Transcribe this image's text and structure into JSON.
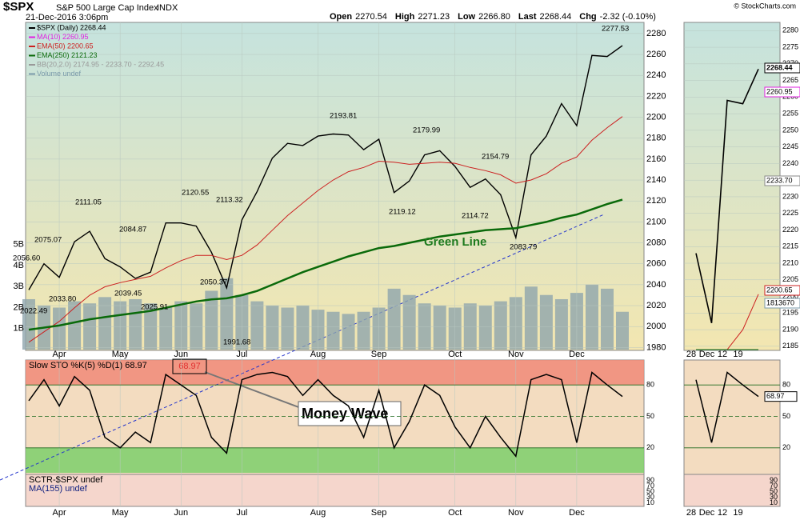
{
  "chart_data": {
    "type": "line",
    "title": "$SPX",
    "subtitle": "S&P 500 Large Cap Index",
    "exchange": "INDX",
    "date": "21-Dec-2016 3:06pm",
    "source": "© StockCharts.com",
    "quote": [
      {
        "label": "Open",
        "value": "2270.54"
      },
      {
        "label": "High",
        "value": "2271.23"
      },
      {
        "label": "Low",
        "value": "2266.80"
      },
      {
        "label": "Last",
        "value": "2268.44"
      },
      {
        "label": "Chg",
        "value": "-2.32 (-0.10%)"
      }
    ],
    "categories": [
      null,
      null,
      "Apr",
      null,
      null,
      null,
      "May",
      null,
      null,
      null,
      "Jun",
      null,
      null,
      null,
      "Jul",
      null,
      null,
      null,
      null,
      "Aug",
      null,
      null,
      null,
      "Sep",
      null,
      null,
      null,
      null,
      "Oct",
      null,
      null,
      null,
      "Nov",
      null,
      null,
      null,
      "Dec",
      null,
      null,
      null
    ],
    "series": [
      {
        "name": "$SPX (Daily) 2268.44",
        "color": "#000000",
        "values": [
          2035,
          2060,
          2047,
          2081,
          2091,
          2065,
          2057,
          2046,
          2052,
          2099,
          2099,
          2096,
          2071,
          2037,
          2102,
          2129,
          2161,
          2175,
          2173,
          2182,
          2184,
          2183,
          2169,
          2179,
          2128,
          2139,
          2164,
          2168,
          2153,
          2133,
          2141,
          2126,
          2085,
          2164,
          2182,
          2213,
          2192,
          2259,
          2258,
          2268.44
        ]
      },
      {
        "name": "EMA(50) 2200.65",
        "color": "#cc2020",
        "values": [
          1985,
          1995,
          2005,
          2018,
          2030,
          2038,
          2042,
          2045,
          2048,
          2056,
          2063,
          2068,
          2068,
          2064,
          2068,
          2078,
          2092,
          2106,
          2118,
          2130,
          2140,
          2148,
          2152,
          2158,
          2157,
          2155,
          2156,
          2157,
          2156,
          2152,
          2149,
          2145,
          2137,
          2140,
          2146,
          2156,
          2162,
          2178,
          2190,
          2200.65
        ]
      },
      {
        "name": "EMA(250) 2121.23",
        "color": "#0a6a0a",
        "values": [
          1997,
          1999,
          2001,
          2004,
          2007,
          2009,
          2011,
          2013,
          2015,
          2018,
          2021,
          2024,
          2026,
          2027,
          2030,
          2034,
          2040,
          2046,
          2052,
          2057,
          2062,
          2067,
          2071,
          2075,
          2077,
          2080,
          2083,
          2086,
          2088,
          2090,
          2092,
          2093,
          2094,
          2097,
          2100,
          2104,
          2107,
          2112,
          2117,
          2121.23
        ]
      }
    ],
    "legend_extra": [
      {
        "name": "MA(10) 2260.95",
        "color": "#e020e0"
      },
      {
        "name": "BB(20,2.0) 2174.95 - 2233.70 - 2292.45",
        "color": "#999999"
      },
      {
        "name": "Volume undef",
        "color": "#7a9aaa"
      }
    ],
    "volume": {
      "color": "#8fa5ad",
      "values": [
        2400000000,
        2100000000,
        2000000000,
        2300000000,
        2200000000,
        2500000000,
        2300000000,
        2400000000,
        2200000000,
        2000000000,
        2300000000,
        2200000000,
        2800000000,
        3400000000,
        2600000000,
        2300000000,
        2100000000,
        2000000000,
        2100000000,
        1900000000,
        1800000000,
        1700000000,
        1800000000,
        2000000000,
        2900000000,
        2600000000,
        2200000000,
        2100000000,
        2000000000,
        2200000000,
        2100000000,
        2300000000,
        2500000000,
        3000000000,
        2600000000,
        2400000000,
        2700000000,
        3100000000,
        2900000000,
        1800000000
      ],
      "ylim": [
        0,
        15500000000
      ],
      "yticks": [
        {
          "value": 1000000000,
          "label": "1B"
        },
        {
          "value": 2000000000,
          "label": "2B"
        },
        {
          "value": 3000000000,
          "label": "3B"
        },
        {
          "value": 4000000000,
          "label": "4B"
        },
        {
          "value": 5000000000,
          "label": "5B"
        }
      ]
    },
    "ylim": [
      1978,
      2286
    ],
    "yticks": [
      1980,
      2000,
      2020,
      2040,
      2060,
      2080,
      2100,
      2120,
      2140,
      2160,
      2180,
      2200,
      2220,
      2240,
      2260,
      2280
    ],
    "annotations": [
      "2277.53",
      "2193.81",
      "2179.99",
      "2154.79",
      "2111.05",
      "2120.55",
      "2113.32",
      "2075.07",
      "2084.87",
      "2056.60",
      "2039.45",
      "2033.80",
      "2022.49",
      "2025.91",
      "2050.37",
      "1991.68",
      "2119.12",
      "2114.72",
      "2083.79",
      "Green Line",
      "Money Wave"
    ],
    "stochastic": {
      "title": "Slow STO %K(5) %D(1) 68.97",
      "value_label": "68.97",
      "color": "#000000",
      "values": [
        65,
        85,
        60,
        88,
        75,
        30,
        20,
        35,
        25,
        90,
        80,
        70,
        30,
        15,
        85,
        90,
        92,
        88,
        70,
        85,
        70,
        60,
        30,
        75,
        20,
        45,
        80,
        70,
        40,
        20,
        50,
        30,
        12,
        85,
        90,
        85,
        25,
        92,
        80,
        68.97
      ],
      "ylim": [
        0,
        100
      ],
      "yticks": [
        20,
        50,
        80
      ]
    },
    "sctr": {
      "title": "SCTR-$SPX undef",
      "ma": "MA(155) undef",
      "ylim": [
        0,
        100
      ],
      "yticks": [
        10,
        30,
        50,
        70,
        90
      ]
    },
    "zoom": {
      "categories": [
        "28",
        "Dec",
        "12",
        "19",
        null
      ],
      "ylim": [
        2184,
        2282
      ],
      "yticks": [
        2185,
        2190,
        2195,
        2200,
        2205,
        2210,
        2215,
        2220,
        2225,
        2230,
        2235,
        2240,
        2245,
        2250,
        2255,
        2260,
        2265,
        2270,
        2275,
        2280
      ],
      "markers": [
        {
          "label": "2268.44",
          "color": "#000000"
        },
        {
          "label": "2260.95",
          "color": "#e020e0"
        },
        {
          "label": "2233.70",
          "color": "#888888"
        },
        {
          "label": "2200.65",
          "color": "#cc2020"
        },
        {
          "label": "1813670",
          "color": "#7a9aaa"
        }
      ]
    }
  }
}
